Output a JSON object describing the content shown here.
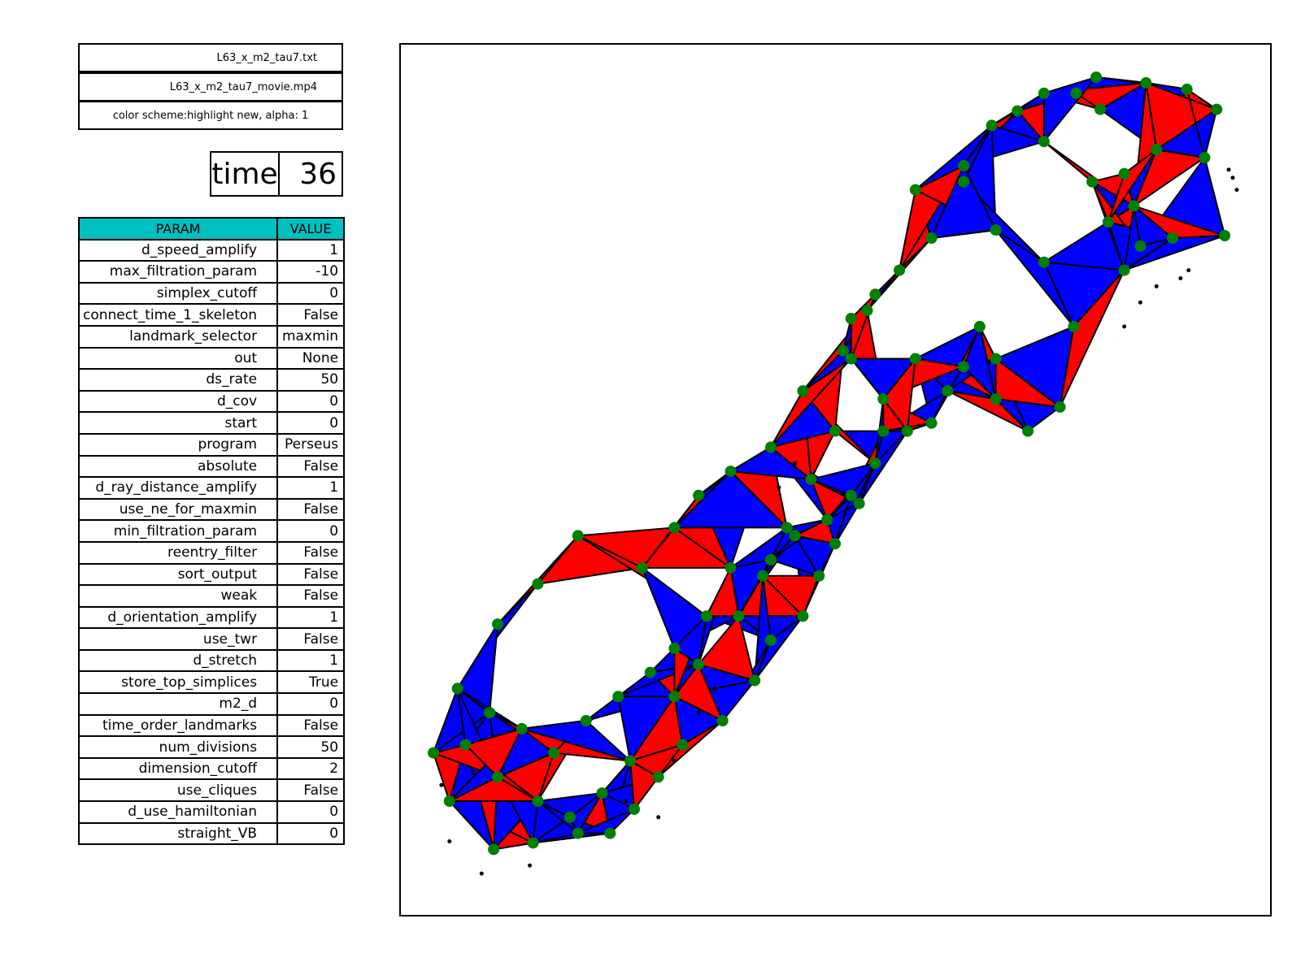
{
  "files": {
    "input_file": "L63_x_m2_tau7.txt",
    "movie_file": "L63_x_m2_tau7_movie.mp4",
    "color_scheme": "color scheme:highlight new, alpha: 1"
  },
  "time": {
    "label": "time",
    "value": "36"
  },
  "params_header": {
    "param": "PARAM",
    "value": "VALUE"
  },
  "params": [
    {
      "name": "d_speed_amplify",
      "value": "1"
    },
    {
      "name": "max_filtration_param",
      "value": "-10"
    },
    {
      "name": "simplex_cutoff",
      "value": "0"
    },
    {
      "name": "connect_time_1_skeleton",
      "value": "False"
    },
    {
      "name": "landmark_selector",
      "value": "maxmin"
    },
    {
      "name": "out",
      "value": "None"
    },
    {
      "name": "ds_rate",
      "value": "50"
    },
    {
      "name": "d_cov",
      "value": "0"
    },
    {
      "name": "start",
      "value": "0"
    },
    {
      "name": "program",
      "value": "Perseus"
    },
    {
      "name": "absolute",
      "value": "False"
    },
    {
      "name": "d_ray_distance_amplify",
      "value": "1"
    },
    {
      "name": "use_ne_for_maxmin",
      "value": "False"
    },
    {
      "name": "min_filtration_param",
      "value": "0"
    },
    {
      "name": "reentry_filter",
      "value": "False"
    },
    {
      "name": "sort_output",
      "value": "False"
    },
    {
      "name": "weak",
      "value": "False"
    },
    {
      "name": "d_orientation_amplify",
      "value": "1"
    },
    {
      "name": "use_twr",
      "value": "False"
    },
    {
      "name": "d_stretch",
      "value": "1"
    },
    {
      "name": "store_top_simplices",
      "value": "True"
    },
    {
      "name": "m2_d",
      "value": "0"
    },
    {
      "name": "time_order_landmarks",
      "value": "False"
    },
    {
      "name": "num_divisions",
      "value": "50"
    },
    {
      "name": "dimension_cutoff",
      "value": "2"
    },
    {
      "name": "use_cliques",
      "value": "False"
    },
    {
      "name": "d_use_hamiltonian",
      "value": "0"
    },
    {
      "name": "straight_VB",
      "value": "0"
    }
  ],
  "colors": {
    "header_bg": "#00bfbf",
    "simplex_new": "#ff0000",
    "simplex_old": "#0000ff",
    "landmark": "#008000",
    "witness": "#000000"
  },
  "chart_data": {
    "type": "scatter",
    "title": "",
    "xlabel": "",
    "ylabel": "",
    "grid": false,
    "xlim": [
      0,
      1000
    ],
    "ylim": [
      0,
      1000
    ],
    "landmarks": [
      [
        825,
        1000
      ],
      [
        887,
        993
      ],
      [
        938,
        985
      ],
      [
        975,
        960
      ],
      [
        960,
        900
      ],
      [
        985,
        803
      ],
      [
        872,
        840
      ],
      [
        820,
        870
      ],
      [
        760,
        920
      ],
      [
        727,
        958
      ],
      [
        695,
        940
      ],
      [
        660,
        870
      ],
      [
        620,
        800
      ],
      [
        580,
        760
      ],
      [
        540,
        710
      ],
      [
        520,
        650
      ],
      [
        500,
        560
      ],
      [
        470,
        500
      ],
      [
        440,
        440
      ],
      [
        410,
        380
      ],
      [
        380,
        330
      ],
      [
        330,
        270
      ],
      [
        300,
        230
      ],
      [
        245,
        150
      ],
      [
        210,
        110
      ],
      [
        180,
        60
      ],
      [
        124,
        48
      ],
      [
        75,
        40
      ],
      [
        20,
        100
      ],
      [
        0,
        160
      ],
      [
        30,
        240
      ],
      [
        80,
        320
      ],
      [
        130,
        370
      ],
      [
        180,
        430
      ],
      [
        260,
        390
      ],
      [
        300,
        440
      ],
      [
        330,
        480
      ],
      [
        370,
        510
      ],
      [
        420,
        540
      ],
      [
        460,
        610
      ],
      [
        510,
        660
      ],
      [
        550,
        730
      ],
      [
        600,
        860
      ],
      [
        660,
        890
      ],
      [
        700,
        810
      ],
      [
        760,
        770
      ],
      [
        797,
        690
      ],
      [
        700,
        650
      ],
      [
        640,
        610
      ],
      [
        590,
        560
      ],
      [
        550,
        520
      ],
      [
        530,
        470
      ],
      [
        500,
        420
      ],
      [
        480,
        380
      ],
      [
        460,
        330
      ],
      [
        420,
        300
      ],
      [
        400,
        250
      ],
      [
        360,
        200
      ],
      [
        310,
        170
      ],
      [
        280,
        130
      ],
      [
        250,
        90
      ],
      [
        220,
        60
      ],
      [
        170,
        80
      ],
      [
        130,
        100
      ],
      [
        80,
        130
      ],
      [
        40,
        170
      ],
      [
        70,
        210
      ],
      [
        110,
        190
      ],
      [
        150,
        160
      ],
      [
        190,
        200
      ],
      [
        230,
        230
      ],
      [
        270,
        260
      ],
      [
        300,
        290
      ],
      [
        340,
        330
      ],
      [
        370,
        390
      ],
      [
        420,
        400
      ],
      [
        450,
        430
      ],
      [
        490,
        450
      ],
      [
        520,
        480
      ],
      [
        560,
        560
      ],
      [
        620,
        570
      ],
      [
        700,
        600
      ],
      [
        740,
        560
      ],
      [
        780,
        590
      ],
      [
        840,
        820
      ],
      [
        880,
        790
      ],
      [
        900,
        910
      ],
      [
        830,
        960
      ],
      [
        800,
        980
      ],
      [
        760,
        980
      ],
      [
        680,
        690
      ],
      [
        660,
        640
      ],
      [
        600,
        650
      ],
      [
        560,
        600
      ],
      [
        520,
        700
      ],
      [
        860,
        760
      ],
      [
        920,
        800
      ],
      [
        860,
        880
      ]
    ],
    "witnesses": [
      [
        990,
        885
      ],
      [
        995,
        875
      ],
      [
        940,
        760
      ],
      [
        900,
        740
      ],
      [
        860,
        690
      ],
      [
        300,
        150
      ],
      [
        240,
        100
      ],
      [
        120,
        20
      ],
      [
        60,
        10
      ],
      [
        20,
        50
      ],
      [
        10,
        120
      ],
      [
        280,
        80
      ],
      [
        330,
        210
      ],
      [
        350,
        240
      ],
      [
        430,
        490
      ],
      [
        450,
        520
      ],
      [
        1000,
        860
      ],
      [
        930,
        750
      ],
      [
        880,
        720
      ]
    ]
  }
}
